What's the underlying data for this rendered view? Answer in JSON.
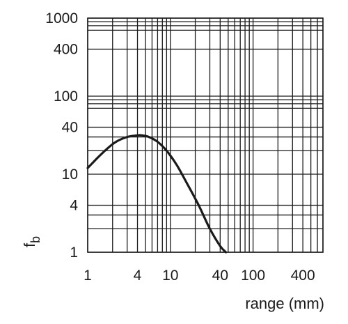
{
  "chart_data": {
    "type": "line",
    "title": "",
    "xlabel": "range (mm)",
    "ylabel": "f_b",
    "ylabel_main": "f",
    "ylabel_sub": "b",
    "xscale": "log",
    "yscale": "log",
    "xlim": [
      1,
      700
    ],
    "ylim": [
      1,
      1000
    ],
    "grid": true,
    "x_ticks": [
      1,
      4,
      10,
      40,
      100,
      400
    ],
    "x_tick_labels": [
      "1",
      "4",
      "10",
      "40",
      "100",
      "400"
    ],
    "y_ticks": [
      1,
      4,
      10,
      40,
      100,
      400,
      1000
    ],
    "y_tick_labels": [
      "1",
      "4",
      "10",
      "40",
      "100",
      "400",
      "1000"
    ],
    "x_grid": [
      1,
      2,
      3,
      4,
      5,
      6,
      7,
      8,
      9,
      10,
      20,
      30,
      40,
      50,
      60,
      70,
      80,
      90,
      100,
      200,
      300,
      400,
      500,
      600,
      700
    ],
    "y_grid": [
      1,
      2,
      3,
      4,
      10,
      20,
      30,
      40,
      70,
      80,
      90,
      100,
      400,
      700,
      800,
      900,
      1000
    ],
    "series": [
      {
        "x": [
          1,
          1.3,
          1.7,
          2.2,
          3,
          4,
          4.5,
          5.5,
          7,
          9,
          12,
          16,
          22,
          30,
          40,
          47
        ],
        "y": [
          12,
          16,
          21,
          26,
          30,
          31.5,
          31.5,
          30,
          26,
          20,
          13,
          7.5,
          4,
          2,
          1.2,
          1
        ]
      }
    ]
  }
}
